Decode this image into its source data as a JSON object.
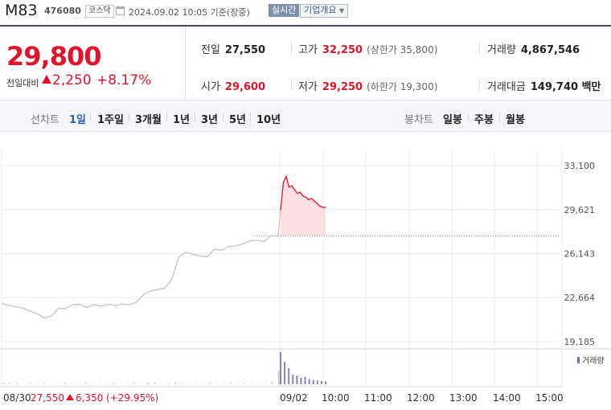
{
  "header": {
    "name": "M83",
    "code": "476080",
    "market": "코스닥",
    "datetime": "2024.09.02 10:05 기준(장중)",
    "realtime_label": "실시간",
    "company_info_label": "기업개요"
  },
  "price": {
    "current": "29,800",
    "compare_label": "전일대비",
    "change": "2,250",
    "change_pct": "+8.17%"
  },
  "stats": {
    "prev_close_label": "전일",
    "prev_close": "27,550",
    "high_label": "고가",
    "high": "32,250",
    "upper_limit": "(상한가 35,800)",
    "volume_label": "거래량",
    "volume": "4,867,546",
    "open_label": "시가",
    "open": "29,600",
    "low_label": "저가",
    "low": "29,250",
    "lower_limit": "(하한가 19,300)",
    "amount_label": "거래대금",
    "amount": "149,740 백만"
  },
  "tabs": {
    "line_label": "선차트",
    "line_periods": [
      "1일",
      "1주일",
      "3개월",
      "1년",
      "3년",
      "5년",
      "10년"
    ],
    "candle_label": "봉차트",
    "candle_periods": [
      "일봉",
      "주봉",
      "월봉"
    ],
    "active": "1일"
  },
  "colors": {
    "up": "#e0152b",
    "volume": "#7c6fb0",
    "accent": "#2f5ea8"
  },
  "chart_data": {
    "type": "line",
    "y_ticks": [
      "33,100",
      "29,621",
      "26,143",
      "22,664",
      "19,185"
    ],
    "ylim": [
      19185,
      33100
    ],
    "baseline": 27550,
    "x_ticks": [
      "08/30",
      "09/02",
      "10:00",
      "11:00",
      "12:00",
      "13:00",
      "14:00",
      "15:00"
    ],
    "prev_day_summary": {
      "date": "08/30",
      "close": "27,550",
      "change": "6,350",
      "change_pct": "(+29.95%)"
    },
    "volume_legend": "거래량",
    "series": [
      {
        "segment": "08/30",
        "values": [
          22200,
          22050,
          21950,
          21850,
          21600,
          21400,
          21050,
          21200,
          21800,
          21800,
          22100,
          22150,
          21900,
          22100,
          22000,
          22150,
          22050,
          22150,
          22100,
          22300,
          22900,
          23200,
          23300,
          23400,
          24100,
          25900,
          26250,
          26100,
          25950,
          25900,
          26500,
          26400,
          26700,
          26750,
          26900,
          27150,
          27200,
          27100,
          27550,
          27550
        ]
      },
      {
        "segment": "09/02",
        "values": [
          29600,
          31800,
          32250,
          31400,
          31500,
          31200,
          30900,
          31000,
          30700,
          30600,
          30400,
          30500,
          30300,
          30100,
          29900,
          29800,
          29800
        ]
      }
    ],
    "volume": {
      "day1": [
        3,
        2,
        2,
        1,
        2,
        1,
        2,
        1,
        1,
        2,
        1,
        1,
        2,
        1,
        1,
        1,
        2,
        1,
        1,
        2,
        1,
        3,
        2,
        1,
        2,
        4,
        2,
        1,
        1,
        1,
        2,
        1,
        1,
        2,
        1,
        2,
        1,
        1,
        1,
        5,
        25
      ],
      "day2": [
        60,
        42,
        30,
        18,
        16,
        12,
        14,
        10,
        8,
        7,
        6,
        5
      ]
    }
  }
}
